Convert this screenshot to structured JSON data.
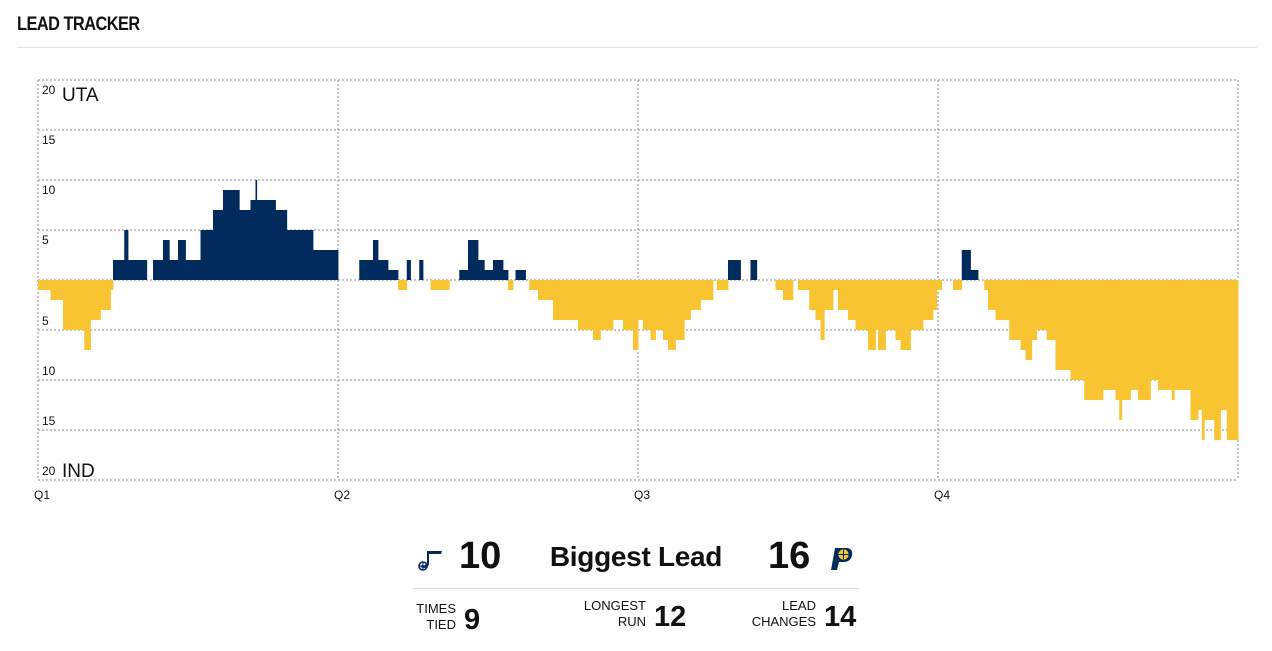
{
  "header": {
    "title": "LEAD TRACKER"
  },
  "colors": {
    "uta": "#002B5C",
    "ind": "#F9C431",
    "grid": "#8a8a8a"
  },
  "chart_data": {
    "type": "area",
    "title": "",
    "series": [
      {
        "name": "UTA",
        "color": "#002B5C",
        "direction": "up"
      },
      {
        "name": "IND",
        "color": "#F9C431",
        "direction": "down"
      }
    ],
    "y_labels_top": [
      "20",
      "15",
      "10",
      "5"
    ],
    "y_labels_bottom": [
      "5",
      "10",
      "15",
      "20"
    ],
    "top_team_label": "UTA",
    "bottom_team_label": "IND",
    "quarter_labels": [
      "Q1",
      "Q2",
      "Q3",
      "Q4"
    ],
    "ylim": [
      -20,
      20
    ],
    "xlim_minutes": [
      0,
      48
    ],
    "grid": true,
    "lead_steps": [
      [
        0.0,
        -1
      ],
      [
        0.5,
        -2
      ],
      [
        1.0,
        -5
      ],
      [
        1.5,
        -5
      ],
      [
        1.85,
        -7
      ],
      [
        2.1,
        -4
      ],
      [
        2.5,
        -3
      ],
      [
        2.9,
        -1
      ],
      [
        3.0,
        2
      ],
      [
        3.45,
        5
      ],
      [
        3.6,
        2
      ],
      [
        4.35,
        0
      ],
      [
        4.6,
        2
      ],
      [
        5.0,
        4
      ],
      [
        5.25,
        2
      ],
      [
        5.6,
        4
      ],
      [
        5.9,
        2
      ],
      [
        6.5,
        5
      ],
      [
        7.0,
        7
      ],
      [
        7.4,
        9
      ],
      [
        8.05,
        7
      ],
      [
        8.5,
        8
      ],
      [
        8.7,
        10
      ],
      [
        8.75,
        8
      ],
      [
        9.5,
        7
      ],
      [
        9.95,
        5
      ],
      [
        11.0,
        3
      ],
      [
        12.0,
        0
      ],
      [
        12.85,
        2
      ],
      [
        13.4,
        4
      ],
      [
        13.6,
        2
      ],
      [
        14.0,
        1
      ],
      [
        14.4,
        -1
      ],
      [
        14.75,
        2
      ],
      [
        14.9,
        0
      ],
      [
        15.25,
        2
      ],
      [
        15.4,
        0
      ],
      [
        15.7,
        -1
      ],
      [
        16.45,
        0
      ],
      [
        16.85,
        1
      ],
      [
        17.2,
        4
      ],
      [
        17.6,
        2
      ],
      [
        17.85,
        1
      ],
      [
        18.2,
        2
      ],
      [
        18.6,
        1
      ],
      [
        18.8,
        -1
      ],
      [
        19.0,
        0
      ],
      [
        19.1,
        1
      ],
      [
        19.5,
        0
      ],
      [
        19.65,
        -1
      ],
      [
        20.0,
        -2
      ],
      [
        20.6,
        -4
      ],
      [
        21.6,
        -5
      ],
      [
        22.2,
        -6
      ],
      [
        22.5,
        -5
      ],
      [
        23.0,
        -4
      ],
      [
        23.4,
        -5
      ],
      [
        23.8,
        -7
      ],
      [
        24.0,
        -4
      ],
      [
        24.2,
        -5
      ],
      [
        24.5,
        -6
      ],
      [
        24.7,
        -5
      ],
      [
        25.0,
        -3
      ],
      [
        25.0,
        -6
      ],
      [
        25.2,
        -7
      ],
      [
        25.5,
        -6
      ],
      [
        25.85,
        -4
      ],
      [
        26.1,
        -3
      ],
      [
        26.5,
        -2
      ],
      [
        26.8,
        -2
      ],
      [
        27.0,
        0
      ],
      [
        27.15,
        -1
      ],
      [
        27.6,
        2
      ],
      [
        28.1,
        0
      ],
      [
        28.5,
        2
      ],
      [
        28.75,
        0
      ],
      [
        29.0,
        0
      ],
      [
        29.5,
        -1
      ],
      [
        29.8,
        -2
      ],
      [
        30.2,
        0
      ],
      [
        30.4,
        -1
      ],
      [
        30.85,
        -3
      ],
      [
        31.1,
        -4
      ],
      [
        31.3,
        -6
      ],
      [
        31.45,
        -3
      ],
      [
        31.8,
        -1
      ],
      [
        32.0,
        -3
      ],
      [
        32.4,
        -4
      ],
      [
        32.7,
        -5
      ],
      [
        33.2,
        -7
      ],
      [
        33.5,
        -5
      ],
      [
        33.6,
        -7
      ],
      [
        33.9,
        -5
      ],
      [
        34.3,
        -6
      ],
      [
        34.5,
        -7
      ],
      [
        34.9,
        -5
      ],
      [
        35.4,
        -4
      ],
      [
        35.8,
        -3
      ],
      [
        35.95,
        -1
      ],
      [
        36.15,
        0
      ],
      [
        36.6,
        -1
      ],
      [
        36.95,
        3
      ],
      [
        37.3,
        1
      ],
      [
        37.6,
        0
      ],
      [
        37.85,
        -1
      ],
      [
        38.0,
        -3
      ],
      [
        38.3,
        -4
      ],
      [
        38.85,
        -6
      ],
      [
        39.3,
        -7
      ],
      [
        39.5,
        -8
      ],
      [
        39.75,
        -6
      ],
      [
        39.95,
        -5
      ],
      [
        40.1,
        -5
      ],
      [
        40.35,
        -6
      ],
      [
        40.7,
        -9
      ],
      [
        41.3,
        -10
      ],
      [
        41.85,
        -12
      ],
      [
        42.6,
        -11
      ],
      [
        43.1,
        -12
      ],
      [
        43.25,
        -14
      ],
      [
        43.35,
        -12
      ],
      [
        43.7,
        -11
      ],
      [
        44.0,
        -12
      ],
      [
        44.5,
        -10
      ],
      [
        44.8,
        -11
      ],
      [
        45.35,
        -12
      ],
      [
        45.45,
        -11
      ],
      [
        46.1,
        -14
      ],
      [
        46.4,
        -13
      ],
      [
        46.55,
        -16
      ],
      [
        46.65,
        -14
      ],
      [
        47.05,
        -16
      ],
      [
        47.3,
        -13
      ],
      [
        47.55,
        -16
      ],
      [
        48.0,
        -16
      ]
    ]
  },
  "summary": {
    "biggest_lead_label": "Biggest Lead",
    "uta_biggest_lead": "10",
    "ind_biggest_lead": "16",
    "uta_icon": "jazz-logo-icon",
    "ind_icon": "pacers-logo-icon",
    "stats": [
      {
        "label_line1": "TIMES",
        "label_line2": "TIED",
        "value": "9"
      },
      {
        "label_line1": "LONGEST",
        "label_line2": "RUN",
        "value": "12"
      },
      {
        "label_line1": "LEAD",
        "label_line2": "CHANGES",
        "value": "14"
      }
    ]
  }
}
